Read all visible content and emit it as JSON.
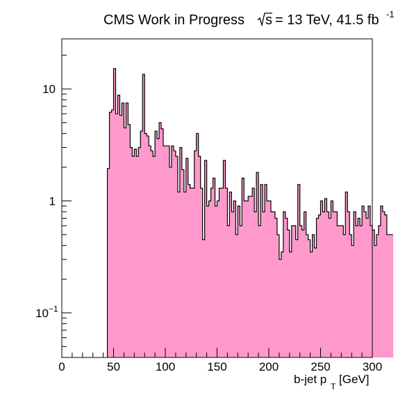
{
  "chart_data": {
    "type": "bar",
    "title_main": "CMS Work in Progress",
    "title_sqrt_s": "s",
    "title_energy": "= 13 TeV, 41.5 fb",
    "title_lumi_exp": "-1",
    "xlabel_main": "b-jet p",
    "xlabel_sub": "T",
    "xlabel_unit": "[GeV]",
    "ylabel": "",
    "xlim": [
      0,
      300
    ],
    "ylim": [
      0.04,
      28
    ],
    "y_log": true,
    "grid": false,
    "x_ticks": [
      {
        "value": 0,
        "label": "0"
      },
      {
        "value": 50,
        "label": "50"
      },
      {
        "value": 100,
        "label": "100"
      },
      {
        "value": 150,
        "label": "150"
      },
      {
        "value": 200,
        "label": "200"
      },
      {
        "value": 250,
        "label": "250"
      },
      {
        "value": 300,
        "label": "300"
      }
    ],
    "y_ticks": [
      {
        "value": 10,
        "label": "10",
        "sup": ""
      },
      {
        "value": 1,
        "label": "1",
        "sup": ""
      },
      {
        "value": 0.1,
        "label": "10",
        "sup": "−1"
      }
    ],
    "fill_color": "#ff99cc",
    "line_color": "#000000",
    "bin_width": 2,
    "bin_start": 44,
    "values": [
      1.95,
      6.2,
      6.5,
      15.2,
      6.0,
      8.8,
      5.8,
      7.5,
      4.5,
      7.5,
      4.8,
      3.0,
      2.5,
      2.9,
      2.5,
      3.0,
      4.2,
      13.5,
      4.0,
      3.8,
      3.1,
      2.8,
      2.5,
      4.2,
      3.6,
      5.0,
      4.4,
      3.1,
      3.1,
      3.1,
      2.0,
      3.1,
      2.8,
      2.5,
      1.2,
      3.0,
      1.9,
      1.2,
      2.4,
      1.4,
      1.3,
      1.3,
      2.8,
      4.0,
      2.5,
      1.3,
      0.45,
      2.3,
      0.9,
      1.0,
      1.3,
      1.6,
      0.9,
      1.0,
      1.3,
      1.3,
      2.3,
      1.3,
      0.6,
      1.2,
      0.8,
      1.0,
      0.5,
      0.9,
      0.6,
      1.6,
      1.0,
      1.0,
      1.1,
      1.1,
      1.3,
      0.8,
      1.8,
      0.6,
      1.4,
      0.8,
      1.4,
      1.0,
      1.0,
      0.8,
      0.8,
      0.7,
      0.5,
      0.3,
      0.35,
      0.8,
      0.7,
      0.55,
      0.35,
      0.6,
      0.6,
      0.45,
      1.4,
      0.6,
      0.55,
      0.8,
      0.5,
      0.45,
      0.35,
      0.5,
      0.38,
      0.7,
      0.75,
      1.0,
      0.8,
      1.05,
      0.8,
      0.7,
      1.0,
      0.8,
      0.8,
      0.6,
      0.6,
      0.6,
      0.5,
      1.2,
      0.8,
      0.5,
      0.4,
      0.8,
      0.6,
      0.7,
      0.6,
      0.9,
      0.8,
      0.7,
      0.9,
      0.6,
      0.55,
      0.4,
      0.5,
      0.6,
      0.9,
      0.8,
      0.75,
      0.5,
      0.5,
      0.5
    ]
  }
}
